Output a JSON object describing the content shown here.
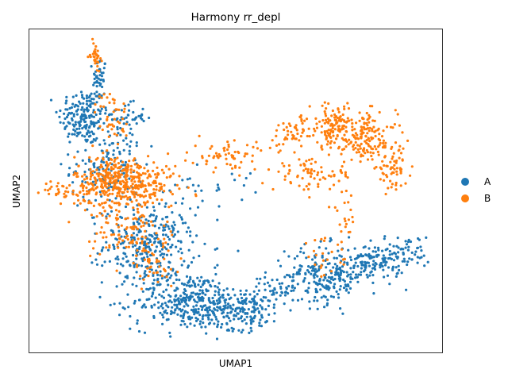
{
  "chart_data": {
    "type": "scatter",
    "title": "Harmony rr_depl",
    "xlabel": "UMAP1",
    "ylabel": "UMAP2",
    "grid": false,
    "ticks": false,
    "legend": "right",
    "xlim": [
      0,
      100
    ],
    "ylim": [
      0,
      100
    ],
    "series": [
      {
        "name": "A",
        "color": "#1f77b4",
        "clusters": [
          {
            "x": 13,
            "y": 73,
            "sx": 3.0,
            "sy": 4.5,
            "n": 170
          },
          {
            "x": 17,
            "y": 85,
            "sx": 0.8,
            "sy": 3.5,
            "n": 45
          },
          {
            "x": 23,
            "y": 73,
            "sx": 2.5,
            "sy": 2.0,
            "n": 40
          },
          {
            "x": 19,
            "y": 58,
            "sx": 4.5,
            "sy": 7.0,
            "n": 170
          },
          {
            "x": 29,
            "y": 33,
            "sx": 5.5,
            "sy": 6.0,
            "n": 300
          },
          {
            "x": 39,
            "y": 16,
            "sx": 7.0,
            "sy": 4.5,
            "n": 360
          },
          {
            "x": 52,
            "y": 13,
            "sx": 4.5,
            "sy": 3.0,
            "n": 150
          },
          {
            "x": 72,
            "y": 24,
            "sx": 5.0,
            "sy": 4.5,
            "n": 230
          },
          {
            "x": 84,
            "y": 28,
            "sx": 3.5,
            "sy": 3.0,
            "n": 120
          },
          {
            "x": 92,
            "y": 31,
            "sx": 2.5,
            "sy": 2.5,
            "n": 45
          },
          {
            "x": 60,
            "y": 20,
            "sx": 3.0,
            "sy": 2.0,
            "n": 45
          },
          {
            "x": 42,
            "y": 52,
            "sx": 6.0,
            "sy": 3.5,
            "n": 30
          }
        ]
      },
      {
        "name": "B",
        "color": "#ff7f0e",
        "clusters": [
          {
            "x": 16,
            "y": 92,
            "sx": 0.6,
            "sy": 2.0,
            "n": 35
          },
          {
            "x": 20,
            "y": 73,
            "sx": 2.0,
            "sy": 4.0,
            "n": 45
          },
          {
            "x": 21,
            "y": 53,
            "sx": 5.0,
            "sy": 4.0,
            "n": 380
          },
          {
            "x": 8,
            "y": 50,
            "sx": 2.5,
            "sy": 1.5,
            "n": 30
          },
          {
            "x": 30,
            "y": 51,
            "sx": 4.0,
            "sy": 3.0,
            "n": 60
          },
          {
            "x": 24,
            "y": 38,
            "sx": 4.5,
            "sy": 5.0,
            "n": 110
          },
          {
            "x": 30,
            "y": 27,
            "sx": 4.0,
            "sy": 4.0,
            "n": 45
          },
          {
            "x": 49,
            "y": 61,
            "sx": 5.0,
            "sy": 2.5,
            "n": 70
          },
          {
            "x": 64,
            "y": 68,
            "sx": 3.0,
            "sy": 2.5,
            "n": 50
          },
          {
            "x": 74,
            "y": 70,
            "sx": 3.0,
            "sy": 3.5,
            "n": 130
          },
          {
            "x": 82,
            "y": 66,
            "sx": 3.5,
            "sy": 4.0,
            "n": 140
          },
          {
            "x": 88,
            "y": 57,
            "sx": 2.0,
            "sy": 3.0,
            "n": 60
          },
          {
            "x": 69,
            "y": 55,
            "sx": 5.0,
            "sy": 2.5,
            "n": 75
          },
          {
            "x": 76,
            "y": 42,
            "sx": 1.5,
            "sy": 4.0,
            "n": 18
          },
          {
            "x": 72,
            "y": 29,
            "sx": 3.5,
            "sy": 3.0,
            "n": 25
          }
        ]
      }
    ]
  }
}
